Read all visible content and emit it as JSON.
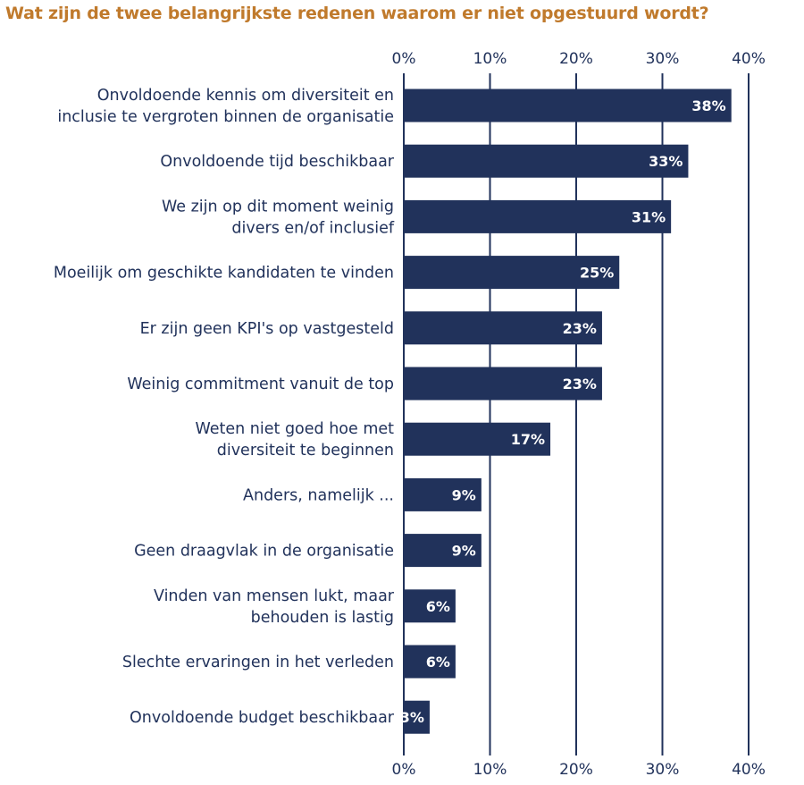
{
  "chart_data": {
    "type": "bar",
    "orientation": "horizontal",
    "title": "Wat zijn de twee belangrijkste redenen waarom er niet opgestuurd wordt?",
    "categories": [
      [
        "Onvoldoende kennis om diversiteit en",
        "inclusie te vergroten binnen de organisatie"
      ],
      [
        "Onvoldoende tijd beschikbaar"
      ],
      [
        "We zijn op dit moment weinig",
        "divers en/of inclusief"
      ],
      [
        "Moeilijk om geschikte kandidaten te vinden"
      ],
      [
        "Er zijn geen KPI's op vastgesteld"
      ],
      [
        "Weinig commitment vanuit de top"
      ],
      [
        "Weten niet goed hoe met",
        "diversiteit te beginnen"
      ],
      [
        "Anders, namelijk ..."
      ],
      [
        "Geen draagvlak in de organisatie"
      ],
      [
        "Vinden van mensen lukt, maar",
        "behouden is lastig"
      ],
      [
        "Slechte ervaringen in het verleden"
      ],
      [
        "Onvoldoende budget beschikbaar"
      ]
    ],
    "values": [
      38,
      33,
      31,
      25,
      23,
      23,
      17,
      9,
      9,
      6,
      6,
      3
    ],
    "value_labels": [
      "38%",
      "33%",
      "31%",
      "25%",
      "23%",
      "23%",
      "17%",
      "9%",
      "9%",
      "6%",
      "6%",
      "3%"
    ],
    "xlim": [
      0,
      40
    ],
    "xticks": [
      "0%",
      "10%",
      "20%",
      "30%",
      "40%"
    ],
    "tick_positions": "top and bottom",
    "grid": true,
    "colors": {
      "bar": "#21325b",
      "title": "#c07a2c",
      "text": "#21325b",
      "grid": "#21325b"
    }
  }
}
